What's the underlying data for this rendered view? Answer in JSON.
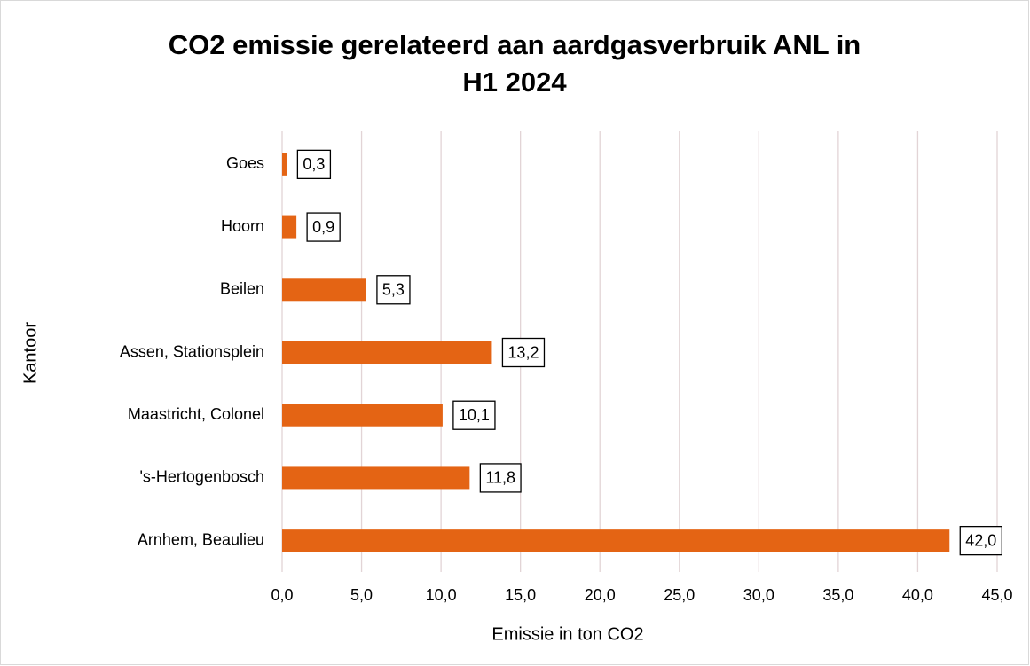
{
  "chart_data": {
    "type": "barh",
    "title": "CO2 emissie gerelateerd aan aardgasverbruik ANL in H1 2024",
    "x_label": "Emissie in ton CO2",
    "y_label": "Kantoor",
    "categories": [
      "Goes",
      "Hoorn",
      "Beilen",
      "Assen, Stationsplein",
      "Maastricht, Colonel",
      "'s-Hertogenbosch",
      "Arnhem, Beaulieu"
    ],
    "values": [
      0.3,
      0.9,
      5.3,
      13.2,
      10.1,
      11.8,
      42.0
    ],
    "value_labels": [
      "0,3",
      "0,9",
      "5,3",
      "13,2",
      "10,1",
      "11,8",
      "42,0"
    ],
    "color": "#e46414",
    "xlim": [
      0,
      45
    ],
    "xticks": [
      {
        "value": 0,
        "label": "0,0"
      },
      {
        "value": 5,
        "label": "5,0"
      },
      {
        "value": 10,
        "label": "10,0"
      },
      {
        "value": 15,
        "label": "15,0"
      },
      {
        "value": 20,
        "label": "20,0"
      },
      {
        "value": 25,
        "label": "25,0"
      },
      {
        "value": 30,
        "label": "30,0"
      },
      {
        "value": 35,
        "label": "35,0"
      },
      {
        "value": 40,
        "label": "40,0"
      },
      {
        "value": 45,
        "label": "45,0"
      }
    ],
    "grid": true
  }
}
